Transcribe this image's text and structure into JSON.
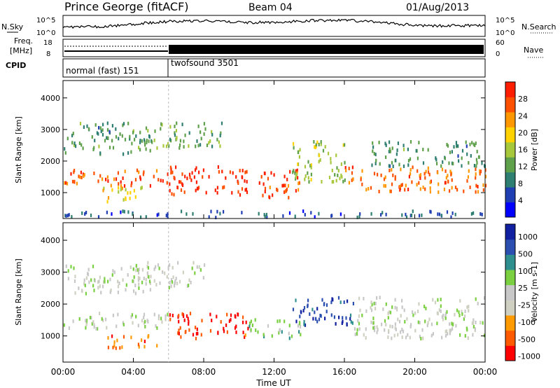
{
  "header": {
    "station": "Prince George (fitACF)",
    "beam": "Beam 04",
    "date": "01/Aug/2013"
  },
  "noise_panel": {
    "left_label": "N.Sky",
    "left_ticks": [
      "10^5",
      "10^0"
    ],
    "right_ticks": [
      "10^5",
      "10^0"
    ],
    "right_label": "N.Search"
  },
  "freq_panel": {
    "left_label_1": "Freq.",
    "left_label_2": "[MHz]",
    "left_ticks": [
      "18",
      "8"
    ],
    "right_ticks": [
      "60",
      "0"
    ],
    "right_label": "Nave"
  },
  "cpid": {
    "label": "CPID",
    "segments": [
      "normal (fast) 151",
      "twofsound 3501"
    ]
  },
  "colors": {
    "power": [
      "#0000ff",
      "#1f3fb3",
      "#2e7f72",
      "#5fa04a",
      "#a8c83c",
      "#ffd200",
      "#ff9800",
      "#ff5000",
      "#ff1f00"
    ],
    "velocity": [
      "#ff0000",
      "#ff5a00",
      "#ff9a00",
      "#cfcfc2",
      "#c8c8c8",
      "#7ad040",
      "#2f8f8f",
      "#2a4fb0",
      "#1020a0"
    ]
  },
  "chart_data": [
    {
      "type": "heatmap",
      "title": "Power",
      "ylabel": "Slant Range [km]",
      "ylim": [
        180,
        4550
      ],
      "yticks": [
        "1000",
        "2000",
        "3000",
        "4000"
      ],
      "xlim": [
        "00:00",
        "24:00"
      ],
      "xticks": [
        "00:00",
        "04:00",
        "08:00",
        "12:00",
        "16:00",
        "20:00",
        "00:00"
      ],
      "colorbar": {
        "label": "Power [dB]",
        "ticks": [
          "4",
          "8",
          "12",
          "16",
          "20",
          "24",
          "28"
        ],
        "range": [
          0,
          30
        ]
      },
      "bands": [
        {
          "t0": 0.0,
          "t1": 6.0,
          "r0": 1200,
          "r1": 1700,
          "v": 26
        },
        {
          "t0": 2.0,
          "t1": 4.5,
          "r0": 700,
          "r1": 1200,
          "v": 18
        },
        {
          "t0": 0.0,
          "t1": 5.0,
          "r0": 2200,
          "r1": 3200,
          "v": 10
        },
        {
          "t0": 6.0,
          "t1": 10.5,
          "r0": 900,
          "r1": 1800,
          "v": 28
        },
        {
          "t0": 11.0,
          "t1": 13.5,
          "r0": 800,
          "r1": 1700,
          "v": 26
        },
        {
          "t0": 13.0,
          "t1": 16.0,
          "r0": 1300,
          "r1": 2600,
          "v": 14
        },
        {
          "t0": 16.0,
          "t1": 24.0,
          "r0": 1000,
          "r1": 1800,
          "v": 24
        },
        {
          "t0": 17.5,
          "t1": 24.0,
          "r0": 1800,
          "r1": 2600,
          "v": 10
        },
        {
          "t0": 5.0,
          "t1": 9.0,
          "r0": 2400,
          "r1": 3200,
          "v": 12
        },
        {
          "t0": 0.0,
          "t1": 24.0,
          "r0": 200,
          "r1": 400,
          "v": 6
        }
      ]
    },
    {
      "type": "heatmap",
      "title": "Velocity",
      "ylabel": "Slant Range [km]",
      "ylim": [
        180,
        4550
      ],
      "yticks": [
        "1000",
        "2000",
        "3000",
        "4000"
      ],
      "xlim": [
        "00:00",
        "24:00"
      ],
      "xticks": [
        "00:00",
        "04:00",
        "08:00",
        "12:00",
        "16:00",
        "20:00",
        "00:00"
      ],
      "xlabel": "Time UT",
      "colorbar": {
        "label": "Velocity [m s-1]",
        "ticks": [
          "1000",
          "500",
          "100",
          "25",
          "-25",
          "-100",
          "-500",
          "-1000"
        ],
        "range": [
          -1000,
          1000
        ]
      },
      "bands": [
        {
          "t0": 0.0,
          "t1": 6.0,
          "r0": 1200,
          "r1": 1700,
          "v": 0
        },
        {
          "t0": 2.5,
          "t1": 5.5,
          "r0": 600,
          "r1": 1000,
          "v": -600
        },
        {
          "t0": 6.0,
          "t1": 10.5,
          "r0": 900,
          "r1": 1700,
          "v": -800
        },
        {
          "t0": 10.5,
          "t1": 13.5,
          "r0": 900,
          "r1": 1500,
          "v": 200
        },
        {
          "t0": 13.0,
          "t1": 16.5,
          "r0": 1300,
          "r1": 2200,
          "v": 700
        },
        {
          "t0": 16.5,
          "t1": 24.0,
          "r0": 900,
          "r1": 2200,
          "v": 0
        },
        {
          "t0": 0.0,
          "t1": 5.0,
          "r0": 2300,
          "r1": 3200,
          "v": 0
        },
        {
          "t0": 4.0,
          "t1": 8.0,
          "r0": 2500,
          "r1": 3300,
          "v": -60
        }
      ]
    }
  ]
}
